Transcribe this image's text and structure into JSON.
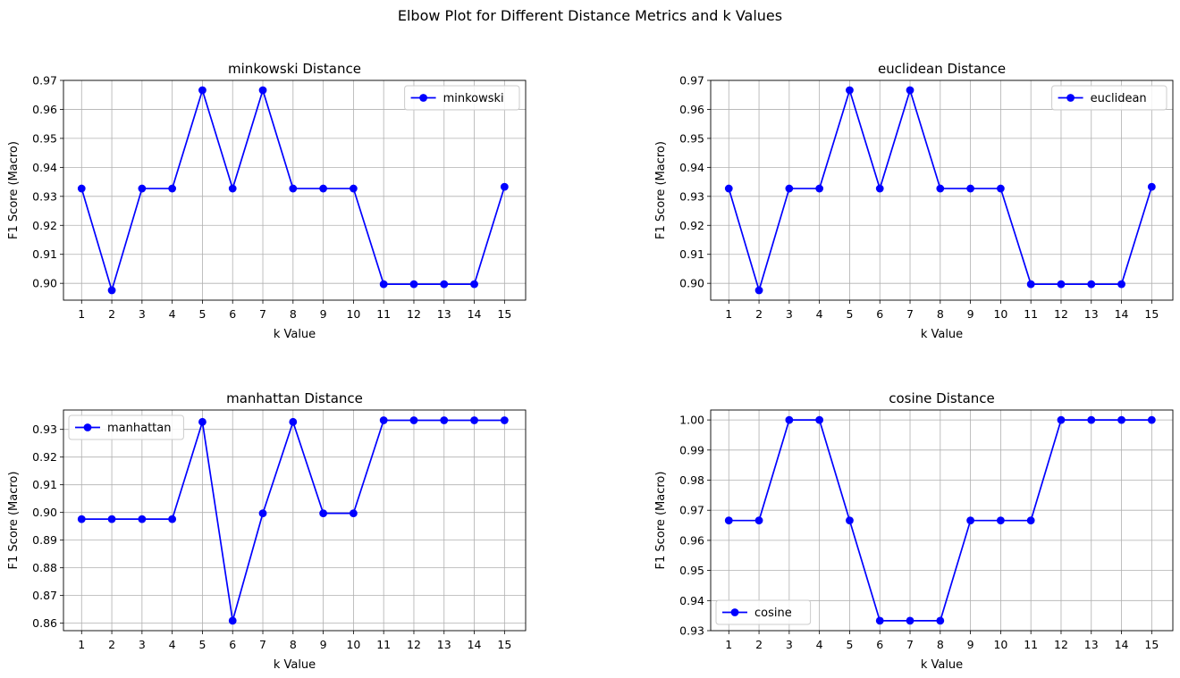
{
  "figure": {
    "suptitle": "Elbow Plot for Different Distance Metrics and k Values"
  },
  "chart_data": [
    {
      "type": "line",
      "title": "minkowski Distance",
      "xlabel": "k Value",
      "ylabel": "F1 Score (Macro)",
      "x": [
        1,
        2,
        3,
        4,
        5,
        6,
        7,
        8,
        9,
        10,
        11,
        12,
        13,
        14,
        15
      ],
      "series": [
        {
          "name": "minkowski",
          "color": "#0000ff",
          "marker": "circle",
          "values": [
            0.9327,
            0.8976,
            0.9327,
            0.9327,
            0.9666,
            0.9327,
            0.9666,
            0.9327,
            0.9327,
            0.9327,
            0.8997,
            0.8997,
            0.8997,
            0.8997,
            0.9333
          ]
        }
      ],
      "xticks": [
        "1",
        "2",
        "3",
        "4",
        "5",
        "6",
        "7",
        "8",
        "9",
        "10",
        "11",
        "12",
        "13",
        "14",
        "15"
      ],
      "yticks": [
        0.9,
        0.91,
        0.92,
        0.93,
        0.94,
        0.95,
        0.96,
        0.97
      ],
      "ytick_labels": [
        "0.90",
        "0.91",
        "0.92",
        "0.93",
        "0.94",
        "0.95",
        "0.96",
        "0.97"
      ],
      "xlim": [
        0.4,
        15.7
      ],
      "ylim": [
        0.8942,
        0.97
      ],
      "grid": true,
      "legend_position": "upper right"
    },
    {
      "type": "line",
      "title": "euclidean Distance",
      "xlabel": "k Value",
      "ylabel": "F1 Score (Macro)",
      "x": [
        1,
        2,
        3,
        4,
        5,
        6,
        7,
        8,
        9,
        10,
        11,
        12,
        13,
        14,
        15
      ],
      "series": [
        {
          "name": "euclidean",
          "color": "#0000ff",
          "marker": "circle",
          "values": [
            0.9327,
            0.8976,
            0.9327,
            0.9327,
            0.9666,
            0.9327,
            0.9666,
            0.9327,
            0.9327,
            0.9327,
            0.8997,
            0.8997,
            0.8997,
            0.8997,
            0.9333
          ]
        }
      ],
      "xticks": [
        "1",
        "2",
        "3",
        "4",
        "5",
        "6",
        "7",
        "8",
        "9",
        "10",
        "11",
        "12",
        "13",
        "14",
        "15"
      ],
      "yticks": [
        0.9,
        0.91,
        0.92,
        0.93,
        0.94,
        0.95,
        0.96,
        0.97
      ],
      "ytick_labels": [
        "0.90",
        "0.91",
        "0.92",
        "0.93",
        "0.94",
        "0.95",
        "0.96",
        "0.97"
      ],
      "xlim": [
        0.4,
        15.7
      ],
      "ylim": [
        0.8942,
        0.97
      ],
      "grid": true,
      "legend_position": "upper right"
    },
    {
      "type": "line",
      "title": "manhattan Distance",
      "xlabel": "k Value",
      "ylabel": "F1 Score (Macro)",
      "x": [
        1,
        2,
        3,
        4,
        5,
        6,
        7,
        8,
        9,
        10,
        11,
        12,
        13,
        14,
        15
      ],
      "series": [
        {
          "name": "manhattan",
          "color": "#0000ff",
          "marker": "circle",
          "values": [
            0.8976,
            0.8976,
            0.8976,
            0.8976,
            0.9327,
            0.8609,
            0.8997,
            0.9327,
            0.8997,
            0.8997,
            0.9333,
            0.9333,
            0.9333,
            0.9333,
            0.9333
          ]
        }
      ],
      "xticks": [
        "1",
        "2",
        "3",
        "4",
        "5",
        "6",
        "7",
        "8",
        "9",
        "10",
        "11",
        "12",
        "13",
        "14",
        "15"
      ],
      "yticks": [
        0.86,
        0.87,
        0.88,
        0.89,
        0.9,
        0.91,
        0.92,
        0.93
      ],
      "ytick_labels": [
        "0.86",
        "0.87",
        "0.88",
        "0.89",
        "0.90",
        "0.91",
        "0.92",
        "0.93"
      ],
      "xlim": [
        0.4,
        15.7
      ],
      "ylim": [
        0.8573,
        0.937
      ],
      "grid": true,
      "legend_position": "upper left"
    },
    {
      "type": "line",
      "title": "cosine Distance",
      "xlabel": "k Value",
      "ylabel": "F1 Score (Macro)",
      "x": [
        1,
        2,
        3,
        4,
        5,
        6,
        7,
        8,
        9,
        10,
        11,
        12,
        13,
        14,
        15
      ],
      "series": [
        {
          "name": "cosine",
          "color": "#0000ff",
          "marker": "circle",
          "values": [
            0.9666,
            0.9666,
            1.0,
            1.0,
            0.9666,
            0.9333,
            0.9333,
            0.9333,
            0.9666,
            0.9666,
            0.9666,
            1.0,
            1.0,
            1.0,
            1.0
          ]
        }
      ],
      "xticks": [
        "1",
        "2",
        "3",
        "4",
        "5",
        "6",
        "7",
        "8",
        "9",
        "10",
        "11",
        "12",
        "13",
        "14",
        "15"
      ],
      "yticks": [
        0.93,
        0.94,
        0.95,
        0.96,
        0.97,
        0.98,
        0.99,
        1.0
      ],
      "ytick_labels": [
        "0.93",
        "0.94",
        "0.95",
        "0.96",
        "0.97",
        "0.98",
        "0.99",
        "1.00"
      ],
      "xlim": [
        0.4,
        15.7
      ],
      "ylim": [
        0.93,
        1.0033
      ],
      "grid": true,
      "legend_position": "lower left"
    }
  ]
}
